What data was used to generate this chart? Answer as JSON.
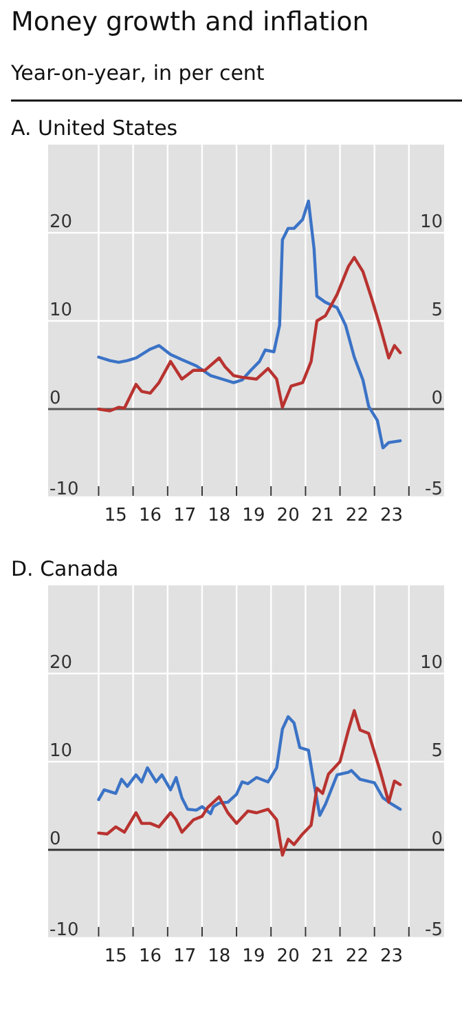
{
  "chart_data": [
    {
      "type": "line",
      "title": "Money growth and inflation",
      "subtitle": "Year-on-year, in per cent",
      "annotations": [
        "A. United States"
      ],
      "xlim": [
        "2013-07-15",
        "2025-01-08"
      ],
      "xticks": [
        {
          "value": "2015",
          "label": null
        },
        {
          "value": "2015-07",
          "label": "15"
        },
        {
          "value": "2016",
          "label": null
        },
        {
          "value": "2016-07",
          "label": "16"
        },
        {
          "value": "2017",
          "label": null
        },
        {
          "value": "2017-07",
          "label": "17"
        },
        {
          "value": "2018",
          "label": null
        },
        {
          "value": "2018-07",
          "label": "18"
        },
        {
          "value": "2019",
          "label": null
        },
        {
          "value": "2019-07",
          "label": "19"
        },
        {
          "value": "2020",
          "label": null
        },
        {
          "value": "2020-07",
          "label": "20"
        },
        {
          "value": "2021",
          "label": null
        },
        {
          "value": "2021-07",
          "label": "21"
        },
        {
          "value": "2022",
          "label": null
        },
        {
          "value": "2022-07",
          "label": "22"
        },
        {
          "value": "2023",
          "label": null
        },
        {
          "value": "2023-07",
          "label": "23"
        },
        {
          "value": "2024",
          "label": null
        }
      ],
      "ylim": [
        -10,
        30
      ],
      "yticks": [
        -10,
        0,
        10,
        20
      ],
      "y2lim": [
        -5,
        15
      ],
      "y2ticks": [
        -5,
        0,
        5,
        10
      ],
      "grid": true,
      "ref_lines": [
        {
          "axis": "y",
          "value": 0,
          "color": "#555555"
        }
      ],
      "series": [
        {
          "color": "#3b73c6",
          "x": [
            "2015-01",
            "2015-05",
            "2015-08",
            "2015-11",
            "2016-02",
            "2016-07",
            "2016-10",
            "2017-02",
            "2017-06",
            "2017-11",
            "2018-04",
            "2018-09",
            "2018-12",
            "2019-03",
            "2019-06",
            "2019-09",
            "2019-11",
            "2020-02",
            "2020-04",
            "2020-05",
            "2020-07",
            "2020-09",
            "2020-12",
            "2021-02",
            "2021-04",
            "2021-05",
            "2021-08",
            "2021-12",
            "2022-03",
            "2022-06",
            "2022-09",
            "2022-11",
            "2023-02",
            "2023-04",
            "2023-06",
            "2023-10"
          ],
          "values": [
            5.9,
            5.5,
            5.3,
            5.5,
            5.8,
            6.8,
            7.2,
            6.2,
            5.6,
            4.9,
            3.8,
            3.3,
            3,
            3.3,
            4.4,
            5.4,
            6.7,
            6.5,
            9.5,
            19.2,
            20.5,
            20.5,
            21.5,
            23.6,
            18.2,
            12.8,
            12.1,
            11.5,
            9.5,
            5.9,
            3.3,
            0.3,
            -1.3,
            -4.4,
            -3.8,
            -3.6
          ]
        },
        {
          "color": "#b83330",
          "axis": "y2",
          "x": [
            "2015-01",
            "2015-05",
            "2015-08",
            "2015-10",
            "2016-02",
            "2016-04",
            "2016-07",
            "2016-10",
            "2017-02",
            "2017-06",
            "2017-10",
            "2018-02",
            "2018-07",
            "2018-09",
            "2018-12",
            "2019-03",
            "2019-08",
            "2019-12",
            "2020-03",
            "2020-05",
            "2020-08",
            "2020-12",
            "2021-03",
            "2021-05",
            "2021-08",
            "2021-12",
            "2022-04",
            "2022-06",
            "2022-09",
            "2022-12",
            "2023-03",
            "2023-06",
            "2023-08",
            "2023-10"
          ],
          "values": [
            0,
            -0.1,
            0.1,
            0.05,
            1.4,
            1,
            0.9,
            1.5,
            2.7,
            1.7,
            2.2,
            2.2,
            2.9,
            2.4,
            1.9,
            1.8,
            1.7,
            2.3,
            1.7,
            0.1,
            1.3,
            1.5,
            2.7,
            5,
            5.3,
            6.5,
            8.1,
            8.6,
            7.8,
            6.3,
            4.7,
            2.9,
            3.6,
            3.2
          ]
        }
      ]
    },
    {
      "type": "line",
      "title": "D. Canada",
      "xlim": [
        "2013-07-15",
        "2025-01-08"
      ],
      "xticks": [
        {
          "value": "2015",
          "label": null
        },
        {
          "value": "2015-07",
          "label": "15"
        },
        {
          "value": "2016",
          "label": null
        },
        {
          "value": "2016-07",
          "label": "16"
        },
        {
          "value": "2017",
          "label": null
        },
        {
          "value": "2017-07",
          "label": "17"
        },
        {
          "value": "2018",
          "label": null
        },
        {
          "value": "2018-07",
          "label": "18"
        },
        {
          "value": "2019",
          "label": null
        },
        {
          "value": "2019-07",
          "label": "19"
        },
        {
          "value": "2020",
          "label": null
        },
        {
          "value": "2020-07",
          "label": "20"
        },
        {
          "value": "2021",
          "label": null
        },
        {
          "value": "2021-07",
          "label": "21"
        },
        {
          "value": "2022",
          "label": null
        },
        {
          "value": "2022-07",
          "label": "22"
        },
        {
          "value": "2023",
          "label": null
        },
        {
          "value": "2023-07",
          "label": "23"
        },
        {
          "value": "2024",
          "label": null
        }
      ],
      "ylim": [
        -10,
        30
      ],
      "yticks": [
        -10,
        0,
        10,
        20
      ],
      "y2lim": [
        -5,
        15
      ],
      "y2ticks": [
        -5,
        0,
        5,
        10
      ],
      "grid": true,
      "ref_lines": [
        {
          "axis": "y",
          "value": 0,
          "color": "#333333"
        }
      ],
      "series": [
        {
          "color": "#3b73c6",
          "x": [
            "2015-01",
            "2015-03",
            "2015-07",
            "2015-09",
            "2015-11",
            "2016-02",
            "2016-04",
            "2016-06",
            "2016-09",
            "2016-11",
            "2017-02",
            "2017-04",
            "2017-06",
            "2017-08",
            "2017-11",
            "2018-01",
            "2018-04",
            "2018-05",
            "2018-07",
            "2018-10",
            "2019-01",
            "2019-03",
            "2019-05",
            "2019-08",
            "2019-12",
            "2020-03",
            "2020-05",
            "2020-07",
            "2020-09",
            "2020-11",
            "2021-02",
            "2021-04",
            "2021-06",
            "2021-08",
            "2021-12",
            "2022-04",
            "2022-05",
            "2022-08",
            "2023-01",
            "2023-04",
            "2023-07",
            "2023-10"
          ],
          "values": [
            5.7,
            6.8,
            6.4,
            8,
            7.2,
            8.5,
            7.7,
            9.3,
            7.7,
            8.5,
            6.8,
            8.2,
            5.9,
            4.6,
            4.5,
            4.9,
            4.1,
            4.9,
            5.3,
            5.4,
            6.3,
            7.7,
            7.5,
            8.2,
            7.7,
            9.3,
            13.7,
            15.1,
            14.4,
            11.6,
            11.3,
            7.5,
            3.9,
            5.2,
            8.5,
            8.8,
            9,
            8,
            7.6,
            5.9,
            5.2,
            4.6
          ]
        },
        {
          "color": "#b83330",
          "axis": "y2",
          "x": [
            "2015-01",
            "2015-04",
            "2015-07",
            "2015-10",
            "2016-02",
            "2016-04",
            "2016-07",
            "2016-10",
            "2017-02",
            "2017-04",
            "2017-06",
            "2017-10",
            "2018-01",
            "2018-03",
            "2018-07",
            "2018-10",
            "2019-01",
            "2019-05",
            "2019-08",
            "2019-12",
            "2020-03",
            "2020-05",
            "2020-07",
            "2020-09",
            "2020-12",
            "2021-03",
            "2021-05",
            "2021-07",
            "2021-09",
            "2022-01",
            "2022-04",
            "2022-06",
            "2022-08",
            "2022-11",
            "2023-03",
            "2023-06",
            "2023-08",
            "2023-10"
          ],
          "values": [
            0.95,
            0.9,
            1.3,
            1,
            2.1,
            1.5,
            1.5,
            1.3,
            2.1,
            1.7,
            1,
            1.7,
            1.9,
            2.4,
            3,
            2.1,
            1.5,
            2.2,
            2.1,
            2.3,
            1.7,
            -0.3,
            0.6,
            0.3,
            0.9,
            1.4,
            3.5,
            3.2,
            4.3,
            5,
            6.8,
            7.9,
            6.8,
            6.6,
            4.5,
            2.7,
            3.9,
            3.7
          ]
        }
      ]
    }
  ]
}
